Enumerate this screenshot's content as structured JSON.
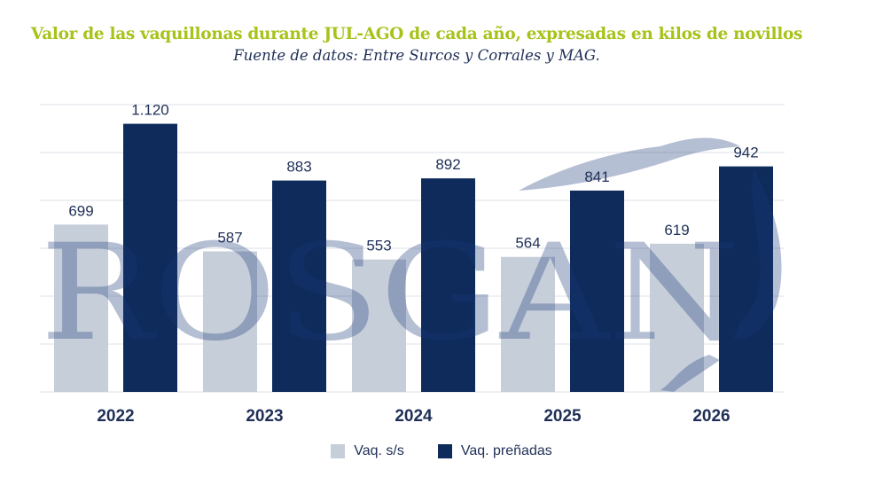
{
  "title": "Valor de las vaquillonas durante JUL-AGO de cada año, expresadas en kilos de novillos",
  "subtitle": "Fuente de datos: Entre Surcos y Corrales y MAG.",
  "watermark": "ROSGAN",
  "colors": {
    "title": "#a6c31a",
    "series1": "#c6ceda",
    "series2": "#0e2b5c",
    "label": "#1f2f57",
    "grid": "#dde2ea",
    "watermark": "#1d3a78"
  },
  "chart_data": {
    "type": "bar",
    "categories": [
      "2022",
      "2023",
      "2024",
      "2025",
      "2026"
    ],
    "series": [
      {
        "name": "Vaq. s/s",
        "values": [
          699,
          587,
          553,
          564,
          619
        ],
        "labels": [
          "699",
          "587",
          "553",
          "564",
          "619"
        ]
      },
      {
        "name": "Vaq. preñadas",
        "values": [
          1120,
          883,
          892,
          841,
          942
        ],
        "labels": [
          "1.120",
          "883",
          "892",
          "841",
          "942"
        ]
      }
    ],
    "ylim": [
      0,
      1200
    ],
    "grid": true,
    "legend": "bottom"
  }
}
